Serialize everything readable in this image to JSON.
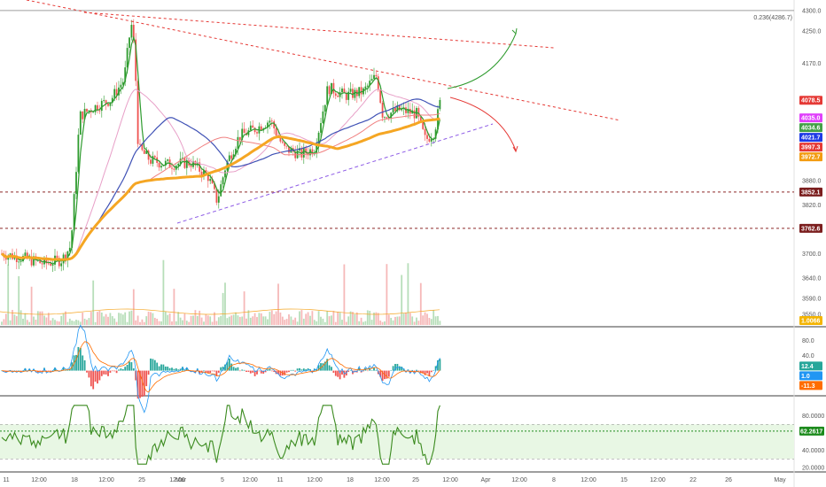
{
  "chart_data": {
    "type": "candlestick",
    "fib_label": "0.236(4286.7)",
    "price_axis": {
      "ticks": [
        "4300.0",
        "4250.0",
        "4170.0",
        "3880.0",
        "3820.0",
        "3700.0",
        "3640.0",
        "3590.0",
        "3550.0"
      ],
      "tick_values": [
        4300,
        4250,
        4170,
        3880,
        3820,
        3700,
        3640,
        3590,
        3550
      ],
      "ylim": [
        3535,
        4315
      ]
    },
    "price_badges": [
      {
        "label": "4078.5",
        "value": 4078.5,
        "color": "#e53935"
      },
      {
        "label": "4035.0",
        "value": 4035.0,
        "color": "#e040fb"
      },
      {
        "label": "4034.6",
        "value": 4034.6,
        "color": "#43a047"
      },
      {
        "label": "4021.7",
        "value": 4021.7,
        "color": "#1e3ae6"
      },
      {
        "label": "3997.3",
        "value": 3997.3,
        "color": "#e53935"
      },
      {
        "label": "3972.7",
        "value": 3972.7,
        "color": "#f39c12"
      },
      {
        "label": "3852.1",
        "value": 3852.1,
        "color": "#7b1e1e"
      },
      {
        "label": "3762.6",
        "value": 3762.6,
        "color": "#7b1e1e"
      }
    ],
    "volume_badge": {
      "label": "1.0066",
      "color": "#f4b400"
    },
    "horizontal_levels": [
      {
        "value": 4300,
        "style": "solid",
        "color": "#9e9e9e"
      },
      {
        "value": 3852.1,
        "style": "dashed",
        "color": "#8d2a2a"
      },
      {
        "value": 3762.6,
        "style": "dashed",
        "color": "#8d2a2a"
      }
    ],
    "macd_panel": {
      "ticks": [
        "80.0",
        "40.0"
      ],
      "tick_values": [
        80,
        40
      ],
      "ylim": [
        -60,
        110
      ],
      "badges": [
        {
          "label": "12.4",
          "value": 12.4,
          "color": "#26a69a"
        },
        {
          "label": "1.0",
          "value": 1.0,
          "color": "#2196f3"
        },
        {
          "label": "-11.3",
          "value": -11.3,
          "color": "#ff6d00"
        }
      ]
    },
    "rsi_panel": {
      "ticks": [
        "80.0000",
        "40.0000",
        "20.0000"
      ],
      "tick_values": [
        80,
        40,
        20
      ],
      "ylim": [
        17,
        100
      ],
      "band": [
        30,
        70
      ],
      "signal_level": 62.2617,
      "badge": {
        "label": "62.2617",
        "value": 62.2617,
        "color": "#1b8a1b"
      }
    },
    "time_axis": {
      "labels": [
        "11",
        "12:00",
        "18",
        "12:00",
        "25",
        "12:00",
        "Mar",
        "5",
        "12:00",
        "11",
        "12:00",
        "18",
        "12:00",
        "25",
        "12:00",
        "Apr",
        "12:00",
        "8",
        "12:00",
        "15",
        "12:00",
        "22",
        "26",
        "May"
      ]
    }
  },
  "colors": {
    "up": "#26a69a",
    "down": "#ef5350",
    "green_line": "#2e9b2e",
    "pink_line": "#e8a0c8",
    "blue_line": "#3f51b5",
    "red_line": "#f08080",
    "orange_line": "#f5a623",
    "rsi_line": "#3a8a1e",
    "rsi_band": "#e8f7e4"
  }
}
